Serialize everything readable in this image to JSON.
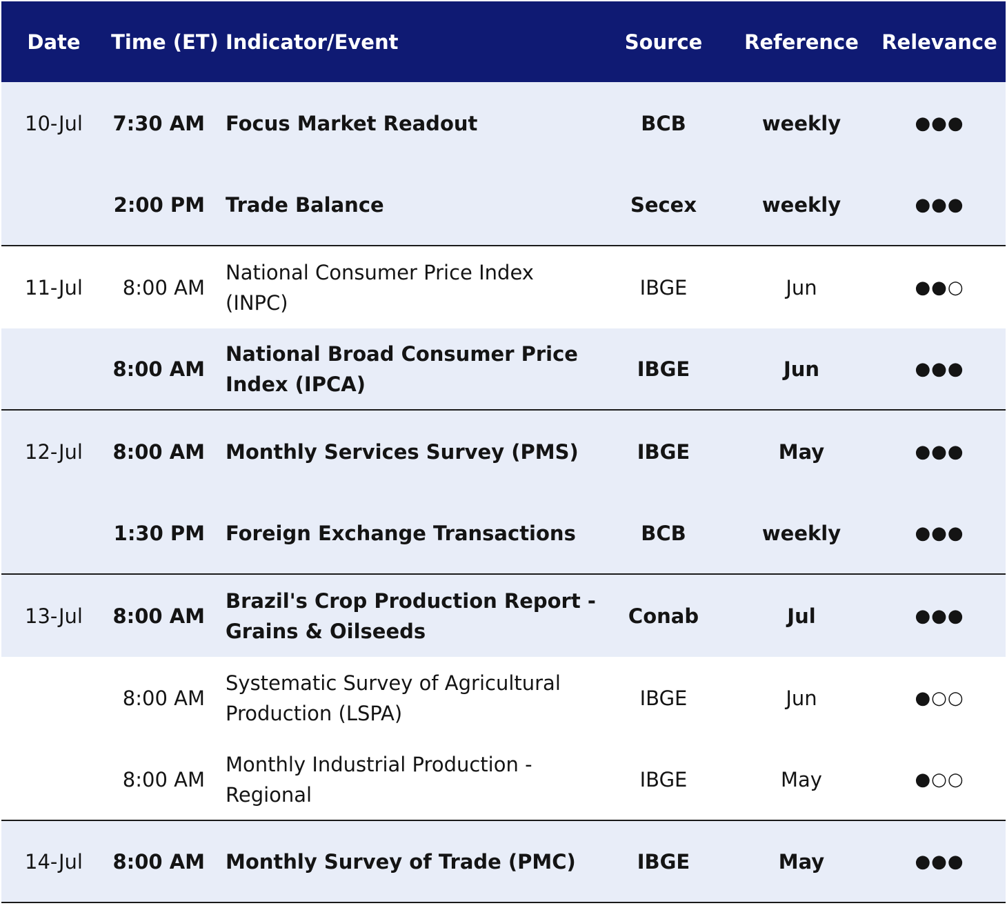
{
  "header": {
    "date": "Date",
    "time": "Time (ET)",
    "event": "Indicator/Event",
    "source": "Source",
    "reference": "Reference",
    "relevance": "Relevance"
  },
  "rows": [
    {
      "date": "10-Jul",
      "time": "7:30 AM",
      "event": "Focus Market Readout",
      "source": "BCB",
      "reference": "weekly",
      "relevance": "●●●"
    },
    {
      "date": "",
      "time": "2:00 PM",
      "event": "Trade Balance",
      "source": "Secex",
      "reference": "weekly",
      "relevance": "●●●"
    },
    {
      "date": "11-Jul",
      "time": "8:00 AM",
      "event": "National Consumer Price Index (INPC)",
      "source": "IBGE",
      "reference": "Jun",
      "relevance": "●●○"
    },
    {
      "date": "",
      "time": "8:00 AM",
      "event": "National Broad Consumer Price Index (IPCA)",
      "source": "IBGE",
      "reference": "Jun",
      "relevance": "●●●"
    },
    {
      "date": "12-Jul",
      "time": "8:00 AM",
      "event": "Monthly Services Survey (PMS)",
      "source": "IBGE",
      "reference": "May",
      "relevance": "●●●"
    },
    {
      "date": "",
      "time": "1:30 PM",
      "event": "Foreign Exchange Transactions",
      "source": "BCB",
      "reference": "weekly",
      "relevance": "●●●"
    },
    {
      "date": "13-Jul",
      "time": "8:00 AM",
      "event": "Brazil's Crop Production Report - Grains & Oilseeds",
      "source": "Conab",
      "reference": "Jul",
      "relevance": "●●●"
    },
    {
      "date": "",
      "time": "8:00 AM",
      "event": "Systematic Survey of Agricultural Production (LSPA)",
      "source": "IBGE",
      "reference": "Jun",
      "relevance": "●○○"
    },
    {
      "date": "",
      "time": "8:00 AM",
      "event": "Monthly Industrial Production - Regional",
      "source": "IBGE",
      "reference": "May",
      "relevance": "●○○"
    },
    {
      "date": "14-Jul",
      "time": "8:00 AM",
      "event": "Monthly Survey of Trade (PMC)",
      "source": "IBGE",
      "reference": "May",
      "relevance": "●●●"
    }
  ],
  "colors": {
    "header_bg": "#0f1a73",
    "shaded_row": "#e8edf8"
  }
}
